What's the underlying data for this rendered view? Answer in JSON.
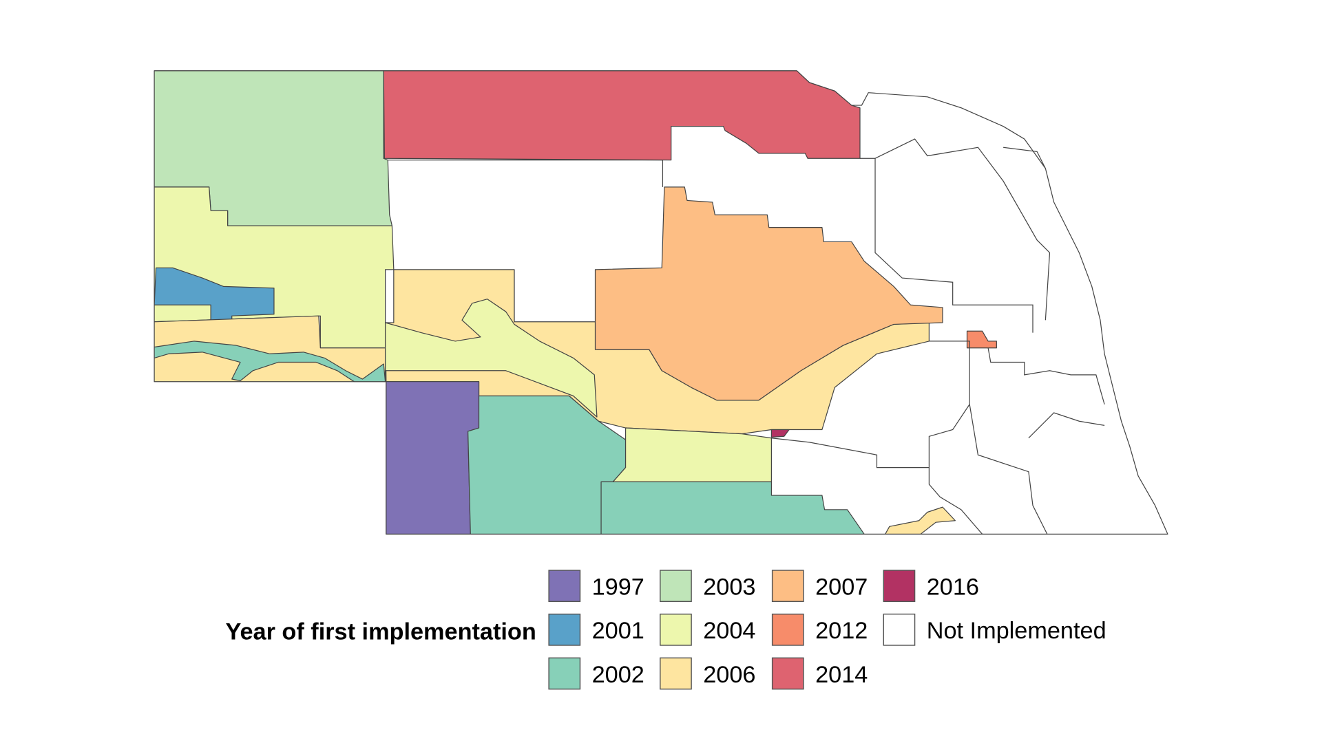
{
  "legend": {
    "title": "Year of first implementation",
    "items": [
      {
        "label": "1997",
        "color": "#7F72B5"
      },
      {
        "label": "2001",
        "color": "#59A1C9"
      },
      {
        "label": "2002",
        "color": "#87D0B8"
      },
      {
        "label": "2003",
        "color": "#BFE5B8"
      },
      {
        "label": "2004",
        "color": "#EDF7AD"
      },
      {
        "label": "2006",
        "color": "#FEE5A0"
      },
      {
        "label": "2007",
        "color": "#FDBE84"
      },
      {
        "label": "2012",
        "color": "#F78C6A"
      },
      {
        "label": "2014",
        "color": "#DE6370"
      },
      {
        "label": "2016",
        "color": "#B23263"
      },
      {
        "label": "Not Implemented",
        "color": "#FFFFFF"
      }
    ]
  }
}
